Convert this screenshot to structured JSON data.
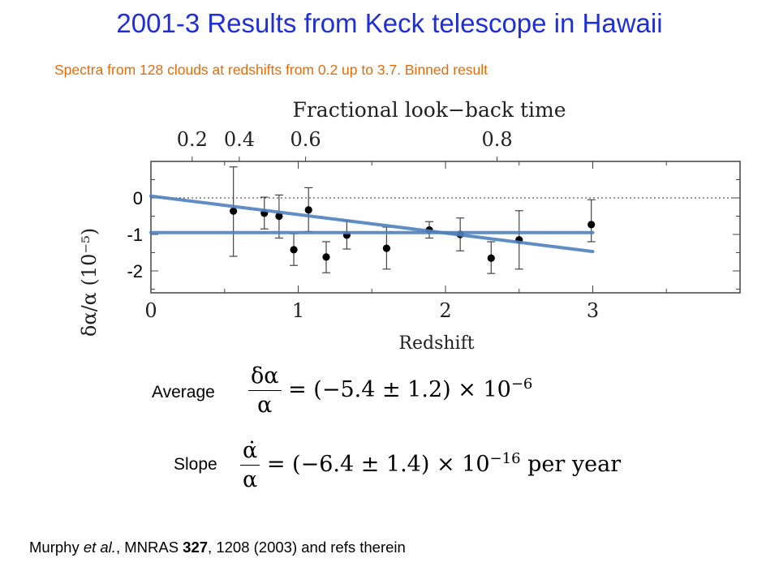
{
  "slide": {
    "title": "2001-3 Results from Keck telescope in Hawaii",
    "subtitle": "Spectra from 128 clouds at redshifts from 0.2 up to 3.7. Binned result",
    "average_label": "Average",
    "slope_label": "Slope",
    "average_formula": {
      "numerator": "δα",
      "denominator": "α",
      "rhs": "= (−5.4 ± 1.2) × 10",
      "exponent": "−6"
    },
    "slope_formula": {
      "numerator": "α̇",
      "denominator": "α",
      "rhs": "= (−6.4 ± 1.4) × 10",
      "exponent": "−16",
      "unit": "per year"
    },
    "reference": {
      "authors": "Murphy ",
      "etal": "et al.",
      "journal": ", MNRAS ",
      "volume": "327",
      "rest": ", 1208 (2003) and refs therein"
    }
  },
  "chart_data": {
    "type": "scatter",
    "xlabel": "Redshift",
    "top_axis_label": "Fractional look−back time",
    "ylabel": "δα/α (10⁻⁵)",
    "xlim": [
      0,
      4
    ],
    "ylim": [
      -2.6,
      1.0
    ],
    "x_ticks": [
      "0",
      "1",
      "2",
      "3"
    ],
    "x_tick_values": [
      0,
      1,
      2,
      3
    ],
    "top_ticks": [
      "0.2",
      "0.4",
      "0.6",
      "0.8"
    ],
    "top_tick_redshifts": [
      0.28,
      0.6,
      1.05,
      2.35
    ],
    "y_ticks": [
      "0",
      "-1",
      "-2"
    ],
    "y_tick_values": [
      0,
      -1,
      -2
    ],
    "zero_line": "dotted",
    "points": [
      {
        "x": 0.56,
        "y": -0.36,
        "lo": -1.6,
        "hi": 0.85
      },
      {
        "x": 0.77,
        "y": -0.42,
        "lo": -0.85,
        "hi": 0.02
      },
      {
        "x": 0.87,
        "y": -0.5,
        "lo": -1.1,
        "hi": 0.08
      },
      {
        "x": 0.97,
        "y": -1.42,
        "lo": -1.85,
        "hi": -0.98
      },
      {
        "x": 1.07,
        "y": -0.33,
        "lo": -0.92,
        "hi": 0.28
      },
      {
        "x": 1.19,
        "y": -1.62,
        "lo": -2.05,
        "hi": -1.2
      },
      {
        "x": 1.33,
        "y": -1.02,
        "lo": -1.4,
        "hi": -0.63
      },
      {
        "x": 1.6,
        "y": -1.38,
        "lo": -1.95,
        "hi": -0.8
      },
      {
        "x": 1.89,
        "y": -0.88,
        "lo": -1.1,
        "hi": -0.65
      },
      {
        "x": 2.1,
        "y": -1.0,
        "lo": -1.45,
        "hi": -0.55
      },
      {
        "x": 2.31,
        "y": -1.65,
        "lo": -2.07,
        "hi": -1.2
      },
      {
        "x": 2.5,
        "y": -1.15,
        "lo": -1.95,
        "hi": -0.35
      },
      {
        "x": 2.99,
        "y": -0.73,
        "lo": -1.2,
        "hi": -0.05
      }
    ],
    "series": [
      {
        "values": [
          [
            0,
            -0.95
          ],
          [
            3,
            -0.95
          ]
        ]
      },
      {
        "values": [
          [
            0,
            0.05
          ],
          [
            3,
            -1.47
          ]
        ]
      }
    ],
    "fit_color": "#4f81bd"
  }
}
